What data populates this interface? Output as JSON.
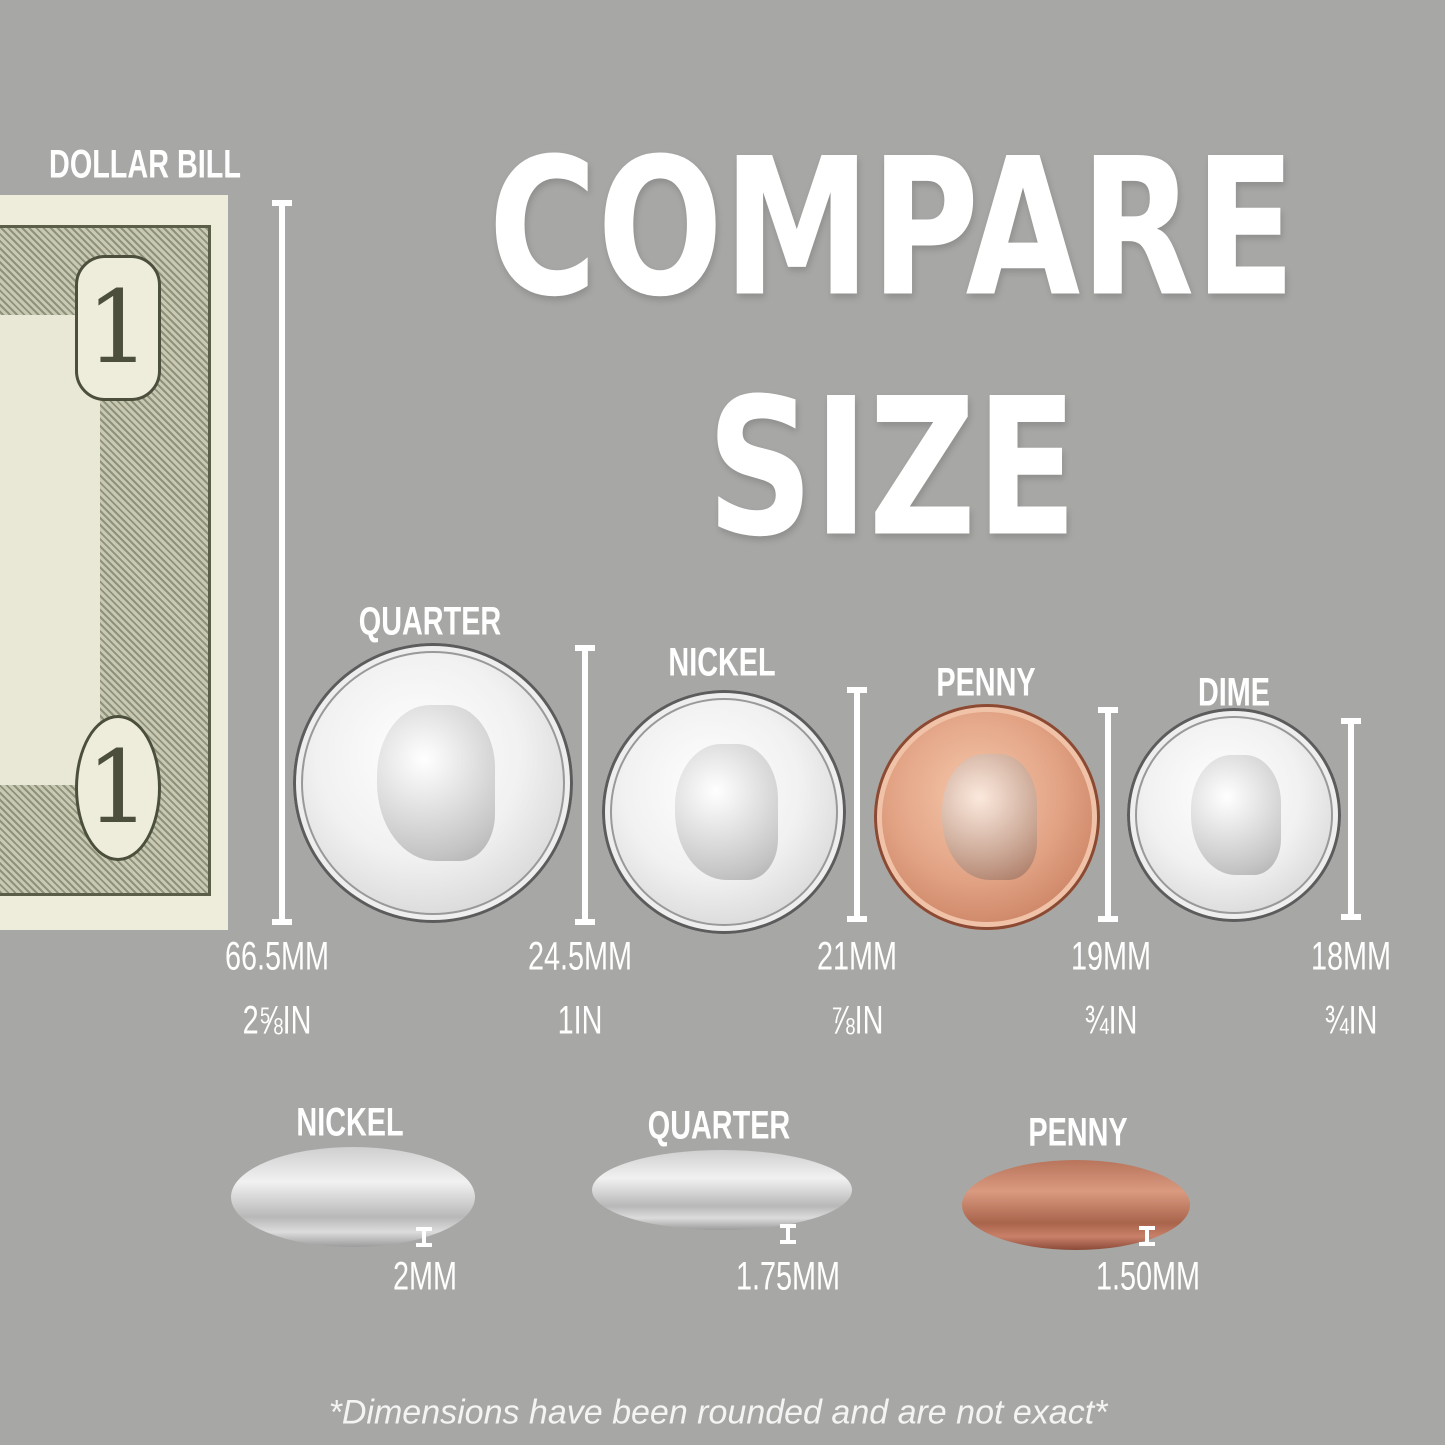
{
  "title": {
    "line1": "COMPARE",
    "line2": "SIZE"
  },
  "dollar_bill": {
    "label": "DOLLAR BILL",
    "height_mm": "66.5MM",
    "height_in": "2⅝IN",
    "bill_numeral": "1"
  },
  "coins": [
    {
      "label": "QUARTER",
      "diameter_mm": "24.5MM",
      "diameter_in": "1IN",
      "metal": "silver"
    },
    {
      "label": "NICKEL",
      "diameter_mm": "21MM",
      "diameter_in": "⅞IN",
      "metal": "silver"
    },
    {
      "label": "PENNY",
      "diameter_mm": "19MM",
      "diameter_in": "¾IN",
      "metal": "copper"
    },
    {
      "label": "DIME",
      "diameter_mm": "18MM",
      "diameter_in": "¾IN",
      "metal": "silver"
    }
  ],
  "thickness": [
    {
      "label": "NICKEL",
      "thickness": "2MM"
    },
    {
      "label": "QUARTER",
      "thickness": "1.75MM"
    },
    {
      "label": "PENNY",
      "thickness": "1.50MM"
    }
  ],
  "footnote": "*Dimensions have been rounded and are not exact*",
  "colors": {
    "background": "#a7a7a5",
    "text": "#ffffff",
    "copper": "#d9967a",
    "silver": "#e6e6e6"
  }
}
